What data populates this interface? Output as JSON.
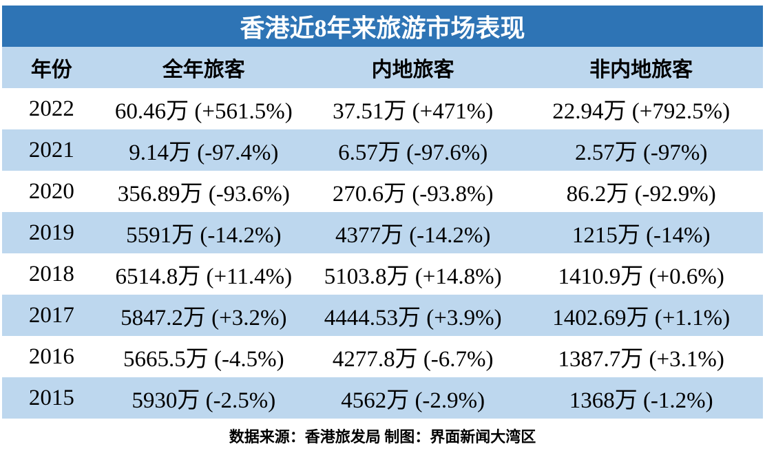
{
  "title": "香港近8年来旅游市场表现",
  "table": {
    "columns": [
      "年份",
      "全年旅客",
      "内地旅客",
      "非内地旅客"
    ],
    "rows": [
      [
        "2022",
        "60.46万 (+561.5%)",
        "37.51万 (+471%)",
        "22.94万 (+792.5%)"
      ],
      [
        "2021",
        "9.14万 (-97.4%)",
        "6.57万 (-97.6%)",
        "2.57万 (-97%)"
      ],
      [
        "2020",
        "356.89万 (-93.6%)",
        "270.6万 (-93.8%)",
        "86.2万 (-92.9%)"
      ],
      [
        "2019",
        "5591万 (-14.2%)",
        "4377万 (-14.2%)",
        "1215万 (-14%)"
      ],
      [
        "2018",
        "6514.8万 (+11.4%)",
        "5103.8万 (+14.8%)",
        "1410.9万 (+0.6%)"
      ],
      [
        "2017",
        "5847.2万 (+3.2%)",
        "4444.53万 (+3.9%)",
        "1402.69万 (+1.1%)"
      ],
      [
        "2016",
        "5665.5万 (-4.5%)",
        "4277.8万 (-6.7%)",
        "1387.7万 (+3.1%)"
      ],
      [
        "2015",
        "5930万 (-2.5%)",
        "4562万 (-2.9%)",
        "1368万 (-1.2%)"
      ]
    ]
  },
  "footer": "数据来源：香港旅发局 制图：界面新闻大湾区",
  "colors": {
    "title_bg": "#2E74B5",
    "row_alt_bg": "#BDD7EE",
    "title_text": "#FFFFFF",
    "body_text": "#000000"
  },
  "chart_data": {
    "type": "table",
    "title": "香港近8年来旅游市场表现",
    "columns": [
      "年份",
      "全年旅客",
      "内地旅客",
      "非内地旅客"
    ],
    "unit": "万",
    "rows": [
      {
        "year": 2022,
        "total": 60.46,
        "total_growth_pct": 561.5,
        "mainland": 37.51,
        "mainland_growth_pct": 471,
        "non_mainland": 22.94,
        "non_mainland_growth_pct": 792.5
      },
      {
        "year": 2021,
        "total": 9.14,
        "total_growth_pct": -97.4,
        "mainland": 6.57,
        "mainland_growth_pct": -97.6,
        "non_mainland": 2.57,
        "non_mainland_growth_pct": -97
      },
      {
        "year": 2020,
        "total": 356.89,
        "total_growth_pct": -93.6,
        "mainland": 270.6,
        "mainland_growth_pct": -93.8,
        "non_mainland": 86.2,
        "non_mainland_growth_pct": -92.9
      },
      {
        "year": 2019,
        "total": 5591,
        "total_growth_pct": -14.2,
        "mainland": 4377,
        "mainland_growth_pct": -14.2,
        "non_mainland": 1215,
        "non_mainland_growth_pct": -14
      },
      {
        "year": 2018,
        "total": 6514.8,
        "total_growth_pct": 11.4,
        "mainland": 5103.8,
        "mainland_growth_pct": 14.8,
        "non_mainland": 1410.9,
        "non_mainland_growth_pct": 0.6
      },
      {
        "year": 2017,
        "total": 5847.2,
        "total_growth_pct": 3.2,
        "mainland": 4444.53,
        "mainland_growth_pct": 3.9,
        "non_mainland": 1402.69,
        "non_mainland_growth_pct": 1.1
      },
      {
        "year": 2016,
        "total": 5665.5,
        "total_growth_pct": -4.5,
        "mainland": 4277.8,
        "mainland_growth_pct": -6.7,
        "non_mainland": 1387.7,
        "non_mainland_growth_pct": 3.1
      },
      {
        "year": 2015,
        "total": 5930,
        "total_growth_pct": -2.5,
        "mainland": 4562,
        "mainland_growth_pct": -2.9,
        "non_mainland": 1368,
        "non_mainland_growth_pct": -1.2
      }
    ],
    "source_note": "数据来源：香港旅发局 制图：界面新闻大湾区"
  }
}
